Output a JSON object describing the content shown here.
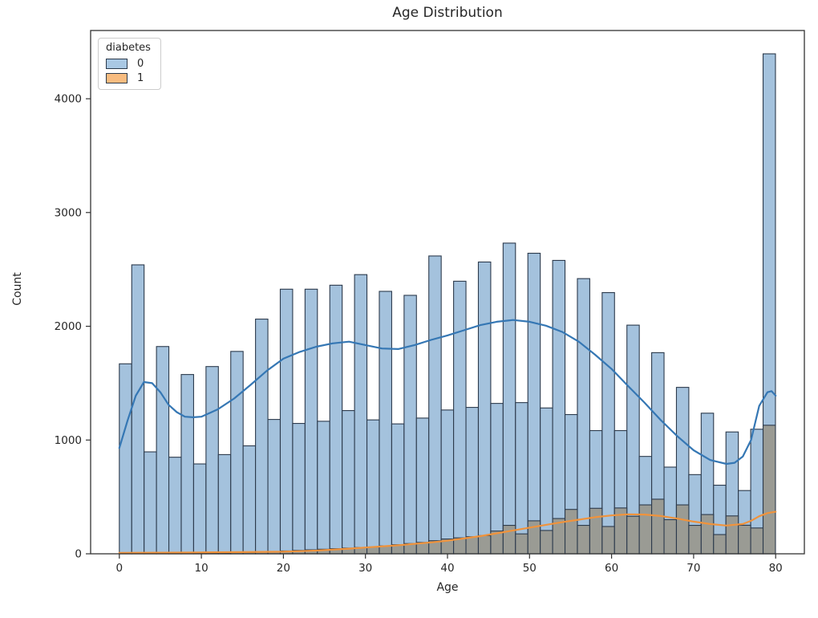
{
  "chart_data": {
    "type": "histogram",
    "title": "Age Distribution",
    "xlabel": "Age",
    "ylabel": "Count",
    "legend": {
      "title": "diabetes",
      "labels": [
        "0",
        "1"
      ],
      "position": "upper left"
    },
    "grid": false,
    "xlim": [
      -3.5,
      83.5
    ],
    "ylim": [
      0,
      4600
    ],
    "xticks": [
      "0",
      "10",
      "20",
      "30",
      "40",
      "50",
      "60",
      "70",
      "80"
    ],
    "xtick_values": [
      0,
      10,
      20,
      30,
      40,
      50,
      60,
      70,
      80
    ],
    "yticks": [
      "0",
      "1000",
      "2000",
      "3000",
      "4000"
    ],
    "ytick_values": [
      0,
      1000,
      2000,
      3000,
      4000
    ],
    "bins": {
      "start": 0,
      "width": 1.509,
      "count": 53
    },
    "series": [
      {
        "name": "0",
        "kind": "bars",
        "values": [
          1670,
          2540,
          896,
          1822,
          849,
          1576,
          790,
          1646,
          872,
          1779,
          949,
          2063,
          1181,
          2326,
          1146,
          2326,
          1165,
          2361,
          1259,
          2454,
          1177,
          2307,
          1142,
          2272,
          1193,
          2618,
          1264,
          2396,
          1287,
          2565,
          1322,
          2731,
          1329,
          2642,
          1282,
          2579,
          1224,
          2419,
          1083,
          2296,
          1083,
          2010,
          856,
          1768,
          762,
          1463,
          696,
          1236,
          603,
          1071,
          556,
          1095,
          4395
        ]
      },
      {
        "name": "1",
        "kind": "bars",
        "values": [
          2,
          3,
          3,
          4,
          4,
          5,
          5,
          8,
          8,
          12,
          12,
          18,
          18,
          25,
          30,
          35,
          40,
          45,
          50,
          55,
          60,
          70,
          80,
          90,
          100,
          115,
          130,
          140,
          150,
          160,
          200,
          250,
          175,
          290,
          205,
          310,
          390,
          250,
          400,
          240,
          403,
          330,
          430,
          480,
          300,
          430,
          250,
          345,
          169,
          333,
          251,
          227,
          1130
        ]
      },
      {
        "name": "0",
        "kind": "kde",
        "points": [
          [
            0,
            930
          ],
          [
            1,
            1170
          ],
          [
            2,
            1390
          ],
          [
            3,
            1510
          ],
          [
            4,
            1500
          ],
          [
            5,
            1420
          ],
          [
            6,
            1310
          ],
          [
            7,
            1245
          ],
          [
            8,
            1205
          ],
          [
            9,
            1200
          ],
          [
            10,
            1205
          ],
          [
            12,
            1270
          ],
          [
            14,
            1365
          ],
          [
            16,
            1485
          ],
          [
            18,
            1610
          ],
          [
            20,
            1715
          ],
          [
            22,
            1775
          ],
          [
            24,
            1820
          ],
          [
            26,
            1850
          ],
          [
            28,
            1865
          ],
          [
            30,
            1835
          ],
          [
            32,
            1805
          ],
          [
            34,
            1800
          ],
          [
            36,
            1835
          ],
          [
            38,
            1880
          ],
          [
            40,
            1920
          ],
          [
            42,
            1965
          ],
          [
            44,
            2010
          ],
          [
            46,
            2040
          ],
          [
            48,
            2055
          ],
          [
            50,
            2040
          ],
          [
            52,
            2005
          ],
          [
            54,
            1950
          ],
          [
            56,
            1865
          ],
          [
            58,
            1750
          ],
          [
            60,
            1625
          ],
          [
            62,
            1475
          ],
          [
            64,
            1330
          ],
          [
            66,
            1175
          ],
          [
            68,
            1035
          ],
          [
            70,
            910
          ],
          [
            72,
            825
          ],
          [
            74,
            790
          ],
          [
            75,
            800
          ],
          [
            76,
            855
          ],
          [
            77,
            1000
          ],
          [
            78,
            1300
          ],
          [
            79,
            1420
          ],
          [
            79.5,
            1430
          ],
          [
            80,
            1390
          ]
        ]
      },
      {
        "name": "1",
        "kind": "kde",
        "points": [
          [
            0,
            8
          ],
          [
            5,
            10
          ],
          [
            10,
            12
          ],
          [
            15,
            15
          ],
          [
            20,
            18
          ],
          [
            24,
            28
          ],
          [
            28,
            45
          ],
          [
            30,
            55
          ],
          [
            34,
            75
          ],
          [
            38,
            100
          ],
          [
            40,
            115
          ],
          [
            44,
            155
          ],
          [
            46,
            180
          ],
          [
            48,
            205
          ],
          [
            50,
            230
          ],
          [
            52,
            255
          ],
          [
            54,
            278
          ],
          [
            56,
            300
          ],
          [
            58,
            322
          ],
          [
            60,
            337
          ],
          [
            62,
            347
          ],
          [
            64,
            345
          ],
          [
            66,
            332
          ],
          [
            68,
            310
          ],
          [
            70,
            283
          ],
          [
            72,
            262
          ],
          [
            74,
            248
          ],
          [
            76,
            262
          ],
          [
            77,
            290
          ],
          [
            78,
            330
          ],
          [
            79,
            358
          ],
          [
            80,
            370
          ]
        ]
      }
    ],
    "colors": {
      "bar0_fill": "#a4c2dd",
      "overlap_fill": "#9a9b94",
      "bar_edge": "#2c3a4c",
      "kde0": "#3577b4",
      "kde1": "#f0933c",
      "swatch0": "#a9c8e4",
      "swatch1": "#f8bc80",
      "spine": "#333333",
      "text": "#262626"
    }
  }
}
